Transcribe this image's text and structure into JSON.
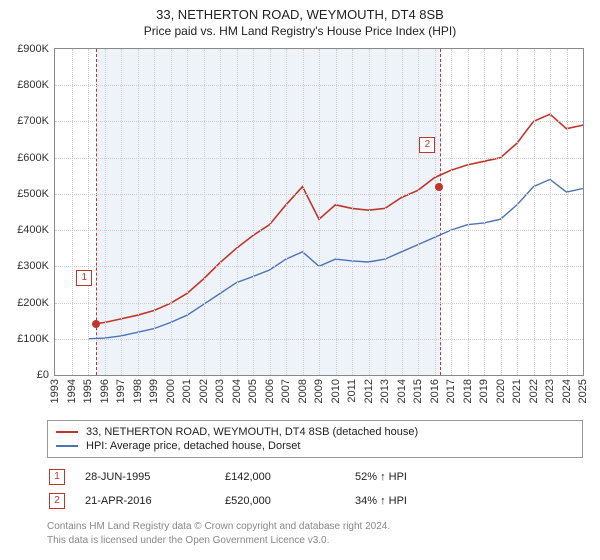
{
  "title_line1": "33, NETHERTON ROAD, WEYMOUTH, DT4 8SB",
  "title_line2": "Price paid vs. HM Land Registry's House Price Index (HPI)",
  "chart": {
    "type": "line",
    "x_start_year": 1993,
    "x_end_year": 2025,
    "ylim": [
      0,
      900
    ],
    "ytick_step": 100,
    "ytick_prefix": "£",
    "ytick_suffix": "K",
    "background_color": "#ffffff",
    "grid_color": "#cccccc",
    "shaded_band": {
      "from_year": 1995.5,
      "to_year": 2016.3,
      "fill": "#eef3f9",
      "border": "#c0362c"
    },
    "series": [
      {
        "name": "33, NETHERTON ROAD, WEYMOUTH, DT4 8SB (detached house)",
        "color": "#c0362c",
        "line_width": 1.6,
        "data_years": [
          1995.5,
          1996,
          1997,
          1998,
          1999,
          2000,
          2001,
          2002,
          2003,
          2004,
          2005,
          2006,
          2007,
          2008,
          2009,
          2010,
          2011,
          2012,
          2013,
          2014,
          2015,
          2016,
          2017,
          2018,
          2019,
          2020,
          2021,
          2022,
          2023,
          2024,
          2025
        ],
        "data_values": [
          142,
          145,
          155,
          165,
          178,
          198,
          225,
          265,
          310,
          350,
          385,
          415,
          470,
          520,
          430,
          470,
          460,
          455,
          460,
          490,
          510,
          545,
          565,
          580,
          590,
          600,
          640,
          700,
          720,
          680,
          690
        ]
      },
      {
        "name": "HPI: Average price, detached house, Dorset",
        "color": "#4a74b5",
        "line_width": 1.4,
        "data_years": [
          1995,
          1996,
          1997,
          1998,
          1999,
          2000,
          2001,
          2002,
          2003,
          2004,
          2005,
          2006,
          2007,
          2008,
          2009,
          2010,
          2011,
          2012,
          2013,
          2014,
          2015,
          2016,
          2017,
          2018,
          2019,
          2020,
          2021,
          2022,
          2023,
          2024,
          2025
        ],
        "data_values": [
          100,
          102,
          108,
          118,
          128,
          145,
          165,
          195,
          225,
          255,
          272,
          290,
          320,
          340,
          300,
          320,
          315,
          312,
          320,
          340,
          360,
          380,
          400,
          415,
          420,
          430,
          470,
          520,
          540,
          505,
          515
        ]
      }
    ],
    "markers": [
      {
        "label": "1",
        "year": 1995.5,
        "value": 142,
        "color": "#c0362c",
        "label_offset_y": -54
      },
      {
        "label": "2",
        "year": 2016.3,
        "value": 520,
        "color": "#c0362c",
        "label_offset_y": -50
      }
    ]
  },
  "legend": {
    "items": [
      {
        "color": "#c0362c",
        "label": "33, NETHERTON ROAD, WEYMOUTH, DT4 8SB (detached house)"
      },
      {
        "color": "#4a74b5",
        "label": "HPI: Average price, detached house, Dorset"
      }
    ]
  },
  "sales": [
    {
      "num": "1",
      "date": "28-JUN-1995",
      "price": "£142,000",
      "pct": "52% ↑ HPI"
    },
    {
      "num": "2",
      "date": "21-APR-2016",
      "price": "£520,000",
      "pct": "34% ↑ HPI"
    }
  ],
  "footer_line1": "Contains HM Land Registry data © Crown copyright and database right 2024.",
  "footer_line2": "This data is licensed under the Open Government Licence v3.0."
}
